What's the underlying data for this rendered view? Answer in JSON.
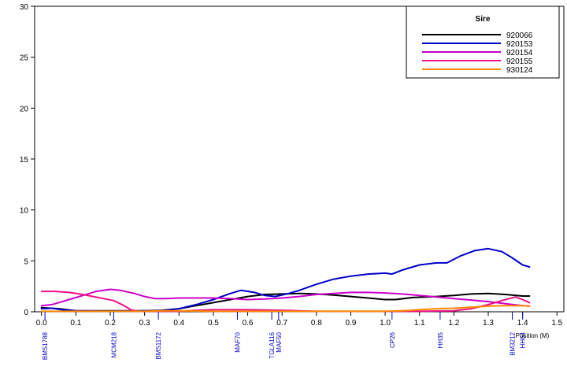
{
  "chart_data": {
    "type": "line",
    "xlabel": "Position (M)",
    "ylabel": "",
    "xlim": [
      -0.02,
      1.52
    ],
    "ylim": [
      0,
      30
    ],
    "x_ticks": [
      0.0,
      0.1,
      0.2,
      0.3,
      0.4,
      0.5,
      0.6,
      0.7,
      0.8,
      0.9,
      1.0,
      1.1,
      1.2,
      1.3,
      1.4,
      1.5
    ],
    "x_tick_labels": [
      "0.0",
      "0.1",
      "0.2",
      "0.3",
      "0.4",
      "0.5",
      "0.6",
      "0.7",
      "0.8",
      "0.9",
      "1.0",
      "1.1",
      "1.2",
      "1.3",
      "1.4",
      "1.5"
    ],
    "y_ticks": [
      0,
      5,
      10,
      15,
      20,
      25,
      30
    ],
    "y_tick_labels": [
      "0",
      "5",
      "10",
      "15",
      "20",
      "25",
      "30"
    ],
    "grid": false,
    "legend": {
      "title": "Sire",
      "position": "top-right"
    },
    "markers": [
      {
        "label": "BMS1788",
        "x": 0.01
      },
      {
        "label": "MCM218",
        "x": 0.21
      },
      {
        "label": "BMS1172",
        "x": 0.34
      },
      {
        "label": "MAF70",
        "x": 0.57
      },
      {
        "label": "TGLA116",
        "x": 0.67
      },
      {
        "label": "MAF50",
        "x": 0.69
      },
      {
        "label": "CP26",
        "x": 1.02
      },
      {
        "label": "HH35",
        "x": 1.16
      },
      {
        "label": "BM3212",
        "x": 1.37
      },
      {
        "label": "HH64",
        "x": 1.4
      }
    ],
    "series": [
      {
        "name": "920066",
        "color": "#000000",
        "x": [
          0.0,
          0.05,
          0.1,
          0.2,
          0.3,
          0.35,
          0.4,
          0.45,
          0.5,
          0.55,
          0.6,
          0.65,
          0.7,
          0.75,
          0.8,
          0.85,
          0.9,
          0.95,
          1.0,
          1.03,
          1.08,
          1.15,
          1.2,
          1.25,
          1.3,
          1.35,
          1.4,
          1.42
        ],
        "y": [
          0.4,
          0.3,
          0.1,
          0.1,
          0.1,
          0.15,
          0.3,
          0.6,
          0.9,
          1.2,
          1.5,
          1.7,
          1.75,
          1.8,
          1.75,
          1.65,
          1.5,
          1.35,
          1.2,
          1.2,
          1.4,
          1.5,
          1.6,
          1.75,
          1.8,
          1.7,
          1.55,
          1.55
        ]
      },
      {
        "name": "920153",
        "color": "#0000cc",
        "x": [
          0.0,
          0.03,
          0.06,
          0.1,
          0.2,
          0.3,
          0.35,
          0.4,
          0.45,
          0.5,
          0.55,
          0.58,
          0.62,
          0.65,
          0.68,
          0.72,
          0.75,
          0.8,
          0.85,
          0.9,
          0.95,
          1.0,
          1.02,
          1.05,
          1.1,
          1.15,
          1.18,
          1.22,
          1.26,
          1.3,
          1.34,
          1.37,
          1.4,
          1.42
        ],
        "y": [
          0.3,
          0.35,
          0.2,
          0.1,
          0.05,
          0.1,
          0.1,
          0.3,
          0.7,
          1.2,
          1.8,
          2.1,
          1.9,
          1.6,
          1.5,
          1.8,
          2.1,
          2.7,
          3.2,
          3.5,
          3.7,
          3.8,
          3.7,
          4.1,
          4.6,
          4.8,
          4.8,
          5.5,
          6.0,
          6.2,
          5.9,
          5.3,
          4.6,
          4.4
        ]
      },
      {
        "name": "920154",
        "color": "#cc00cc",
        "x": [
          0.0,
          0.03,
          0.05,
          0.08,
          0.12,
          0.16,
          0.2,
          0.23,
          0.27,
          0.3,
          0.33,
          0.36,
          0.4,
          0.45,
          0.5,
          0.55,
          0.6,
          0.65,
          0.7,
          0.75,
          0.8,
          0.85,
          0.9,
          0.95,
          1.0,
          1.05,
          1.1,
          1.15,
          1.2,
          1.25,
          1.3,
          1.35,
          1.4,
          1.42
        ],
        "y": [
          0.6,
          0.7,
          0.9,
          1.2,
          1.6,
          2.0,
          2.2,
          2.1,
          1.8,
          1.5,
          1.3,
          1.3,
          1.35,
          1.35,
          1.35,
          1.3,
          1.2,
          1.25,
          1.35,
          1.5,
          1.7,
          1.8,
          1.9,
          1.9,
          1.85,
          1.75,
          1.6,
          1.45,
          1.3,
          1.15,
          1.0,
          0.8,
          0.6,
          0.55
        ]
      },
      {
        "name": "920155",
        "color": "#ee1188",
        "x": [
          0.0,
          0.04,
          0.08,
          0.12,
          0.15,
          0.18,
          0.21,
          0.24,
          0.26,
          0.28,
          0.3,
          0.35,
          0.4,
          0.45,
          0.5,
          0.6,
          0.7,
          0.8,
          0.9,
          1.0,
          1.1,
          1.2,
          1.25,
          1.3,
          1.35,
          1.38,
          1.4,
          1.42
        ],
        "y": [
          2.0,
          2.0,
          1.9,
          1.7,
          1.5,
          1.3,
          1.1,
          0.6,
          0.2,
          0.05,
          0.05,
          0.05,
          0.05,
          0.15,
          0.2,
          0.2,
          0.15,
          0.05,
          0.05,
          0.05,
          0.05,
          0.1,
          0.3,
          0.7,
          1.2,
          1.45,
          1.2,
          0.9
        ]
      },
      {
        "name": "930124",
        "color": "#ff8800",
        "x": [
          0.0,
          0.1,
          0.2,
          0.3,
          0.35,
          0.4,
          0.5,
          0.6,
          0.7,
          0.8,
          0.9,
          1.0,
          1.05,
          1.1,
          1.15,
          1.2,
          1.25,
          1.3,
          1.35,
          1.4,
          1.42
        ],
        "y": [
          0.05,
          0.05,
          0.05,
          0.05,
          0.1,
          0.1,
          0.05,
          0.05,
          0.05,
          0.05,
          0.05,
          0.05,
          0.1,
          0.2,
          0.3,
          0.35,
          0.45,
          0.55,
          0.6,
          0.6,
          0.55
        ]
      }
    ]
  }
}
